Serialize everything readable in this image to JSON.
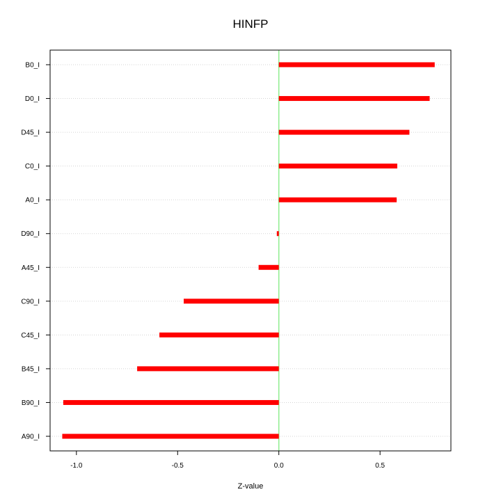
{
  "chart_data": {
    "type": "bar",
    "orientation": "horizontal",
    "title": "HINFP",
    "xlabel": "Z-value",
    "ylabel": "",
    "categories": [
      "B0_I",
      "D0_I",
      "D45_I",
      "C0_I",
      "A0_I",
      "D90_I",
      "A45_I",
      "C90_I",
      "C45_I",
      "B45_I",
      "B90_I",
      "A90_I"
    ],
    "values": [
      0.77,
      0.745,
      0.645,
      0.585,
      0.582,
      -0.01,
      -0.1,
      -0.47,
      -0.59,
      -0.7,
      -1.065,
      -1.07
    ],
    "xlim": [
      -1.13,
      0.85
    ],
    "xticks": [
      -1.0,
      -0.5,
      0.0,
      0.5
    ],
    "xtick_labels": [
      "-1.0",
      "-0.5",
      "0.0",
      "0.5"
    ],
    "reference_line": 0,
    "grid": "horizontal dotted",
    "colors": {
      "bar": "#ff0000",
      "reference_line": "#90ee90",
      "grid": "#d3d3d3",
      "axis": "#000000"
    }
  }
}
